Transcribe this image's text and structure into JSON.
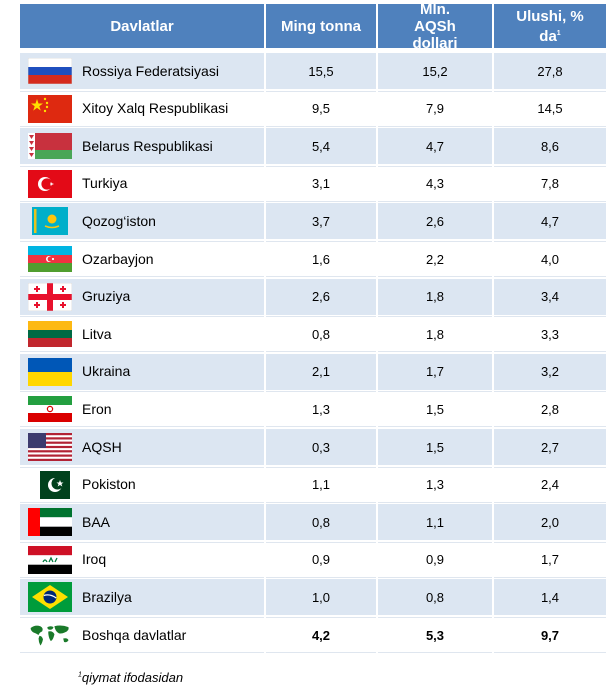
{
  "header": {
    "country": "Davlatlar",
    "thousand_tons": "Ming tonna",
    "mln_usd": "Mln. AQSh dollari",
    "share": "Ulushi, % da",
    "share_note_mark": "1"
  },
  "rows": [
    {
      "country": "Rossiya Federatsiyasi",
      "flag": "russia-flag-icon",
      "tons": "15,5",
      "usd": "15,2",
      "share": "27,8"
    },
    {
      "country": "Xitoy Xalq Respublikasi",
      "flag": "china-flag-icon",
      "tons": "9,5",
      "usd": "7,9",
      "share": "14,5"
    },
    {
      "country": "Belarus Respublikasi",
      "flag": "belarus-flag-icon",
      "tons": "5,4",
      "usd": "4,7",
      "share": "8,6"
    },
    {
      "country": "Turkiya",
      "flag": "turkey-flag-icon",
      "tons": "3,1",
      "usd": "4,3",
      "share": "7,8"
    },
    {
      "country": "Qozog‘iston",
      "flag": "kazakhstan-flag-icon",
      "tons": "3,7",
      "usd": "2,6",
      "share": "4,7"
    },
    {
      "country": "Ozarbayjon",
      "flag": "azerbaijan-flag-icon",
      "tons": "1,6",
      "usd": "2,2",
      "share": "4,0"
    },
    {
      "country": "Gruziya",
      "flag": "georgia-flag-icon",
      "tons": "2,6",
      "usd": "1,8",
      "share": "3,4"
    },
    {
      "country": "Litva",
      "flag": "lithuania-flag-icon",
      "tons": "0,8",
      "usd": "1,8",
      "share": "3,3"
    },
    {
      "country": "Ukraina",
      "flag": "ukraine-flag-icon",
      "tons": "2,1",
      "usd": "1,7",
      "share": "3,2"
    },
    {
      "country": "Eron",
      "flag": "iran-flag-icon",
      "tons": "1,3",
      "usd": "1,5",
      "share": "2,8"
    },
    {
      "country": "AQSH",
      "flag": "usa-flag-icon",
      "tons": "0,3",
      "usd": "1,5",
      "share": "2,7"
    },
    {
      "country": "Pokiston",
      "flag": "pakistan-flag-icon",
      "tons": "1,1",
      "usd": "1,3",
      "share": "2,4"
    },
    {
      "country": "BAA",
      "flag": "uae-flag-icon",
      "tons": "0,8",
      "usd": "1,1",
      "share": "2,0"
    },
    {
      "country": "Iroq",
      "flag": "iraq-flag-icon",
      "tons": "0,9",
      "usd": "0,9",
      "share": "1,7"
    },
    {
      "country": "Brazilya",
      "flag": "brazil-flag-icon",
      "tons": "1,0",
      "usd": "0,8",
      "share": "1,4"
    },
    {
      "country": "Boshqa davlatlar",
      "flag": "world-map-icon",
      "tons": "4,2",
      "usd": "5,3",
      "share": "9,7",
      "bold": true
    }
  ],
  "footnote": {
    "mark": "1",
    "text": "qiymat ifodasidan"
  },
  "colors": {
    "header_bg": "#4f81bd",
    "header_text": "#ffffff",
    "band": "#dce6f2"
  }
}
